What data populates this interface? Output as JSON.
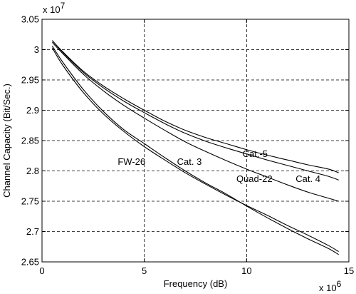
{
  "chart_data": {
    "type": "line",
    "title": "",
    "xlabel": "Frequency (dB)",
    "ylabel": "Channel Capacity (Bit/Sec.)",
    "x_multiplier": "x 10",
    "x_multiplier_exp": "6",
    "y_multiplier": "x 10",
    "y_multiplier_exp": "7",
    "xlim": [
      0,
      15
    ],
    "ylim": [
      2.65,
      3.05
    ],
    "xticks": [
      0,
      5,
      10,
      15
    ],
    "yticks": [
      2.65,
      2.7,
      2.75,
      2.8,
      2.85,
      2.9,
      2.95,
      3.0,
      3.05
    ],
    "xtick_labels": [
      "0",
      "5",
      "10",
      "15"
    ],
    "ytick_labels": [
      "2.65",
      "2.7",
      "2.75",
      "2.8",
      "2.85",
      "2.9",
      "2.95",
      "3",
      "3.05"
    ],
    "grid": true,
    "grid_style": "dashed",
    "line_color": "#000000",
    "series": [
      {
        "name": "Cat.-5",
        "x": [
          0.5,
          1,
          2,
          3,
          4,
          5,
          6,
          7,
          8,
          9,
          10,
          11,
          12,
          13,
          14,
          14.5
        ],
        "values": [
          3.015,
          2.997,
          2.965,
          2.94,
          2.919,
          2.9,
          2.882,
          2.867,
          2.855,
          2.845,
          2.835,
          2.826,
          2.818,
          2.81,
          2.803,
          2.797
        ]
      },
      {
        "name": "Cat. 4",
        "x": [
          0.5,
          1,
          2,
          3,
          4,
          5,
          6,
          7,
          8,
          9,
          10,
          11,
          12,
          13,
          14,
          14.5
        ],
        "values": [
          3.015,
          2.996,
          2.963,
          2.937,
          2.915,
          2.896,
          2.878,
          2.862,
          2.849,
          2.838,
          2.828,
          2.818,
          2.809,
          2.8,
          2.791,
          2.785
        ]
      },
      {
        "name": "Quad-22",
        "x": [
          0.5,
          1,
          2,
          3,
          4,
          5,
          6,
          7,
          8,
          9,
          10,
          11,
          12,
          13,
          14,
          14.5
        ],
        "values": [
          3.012,
          2.994,
          2.96,
          2.932,
          2.908,
          2.887,
          2.867,
          2.848,
          2.832,
          2.817,
          2.803,
          2.79,
          2.777,
          2.765,
          2.755,
          2.75
        ]
      },
      {
        "name": "Cat. 3",
        "x": [
          0.5,
          1,
          2,
          3,
          4,
          5,
          6,
          7,
          8,
          9,
          10,
          11,
          12,
          13,
          14,
          14.5
        ],
        "values": [
          3.006,
          2.98,
          2.935,
          2.898,
          2.868,
          2.845,
          2.822,
          2.8,
          2.78,
          2.762,
          2.742,
          2.723,
          2.705,
          2.688,
          2.672,
          2.662
        ]
      },
      {
        "name": "FW-26",
        "x": [
          0.5,
          1,
          2,
          3,
          4,
          5,
          6,
          7,
          8,
          9,
          10,
          11,
          12,
          13,
          14,
          14.5
        ],
        "values": [
          3.003,
          2.975,
          2.93,
          2.894,
          2.865,
          2.84,
          2.818,
          2.797,
          2.778,
          2.76,
          2.743,
          2.727,
          2.71,
          2.694,
          2.677,
          2.667
        ]
      }
    ],
    "annotations": [
      {
        "text": "Cat.-5",
        "series": "Cat.-5",
        "x": 9.8,
        "y": 2.823
      },
      {
        "text": "Cat. 4",
        "series": "Cat. 4",
        "x": 12.4,
        "y": 2.782
      },
      {
        "text": "Quad-22",
        "series": "Quad-22",
        "x": 9.5,
        "y": 2.782
      },
      {
        "text": "Cat. 3",
        "series": "Cat. 3",
        "x": 6.6,
        "y": 2.81
      },
      {
        "text": "FW-26",
        "series": "FW-26",
        "x": 3.7,
        "y": 2.81
      }
    ]
  }
}
